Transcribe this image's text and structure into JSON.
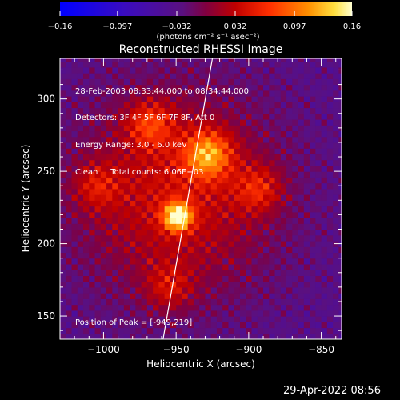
{
  "chart_data": {
    "type": "heatmap",
    "title": "Reconstructed RHESSI Image",
    "xlabel": "Heliocentric X (arcsec)",
    "ylabel": "Heliocentric Y (arcsec)",
    "xlim": [
      -1030,
      -836
    ],
    "ylim": [
      134,
      328
    ],
    "xticks": [
      -1000,
      -950,
      -900,
      -850
    ],
    "xtick_labels": [
      "−1000",
      "−950",
      "−900",
      "−850"
    ],
    "yticks": [
      150,
      200,
      250,
      300
    ],
    "ytick_labels": [
      "150",
      "200",
      "250",
      "300"
    ],
    "colorbar": {
      "min": -0.16,
      "max": 0.16,
      "ticks": [
        -0.16,
        -0.097,
        -0.032,
        0.032,
        0.097,
        0.16
      ],
      "tick_labels": [
        "−0.16",
        "−0.097",
        "−0.032",
        "0.032",
        "0.097",
        "0.16"
      ],
      "units_label": "(photons cm⁻² s⁻¹ asec⁻²)"
    },
    "sources": [
      {
        "x": -949,
        "y": 219,
        "peak": 0.16
      },
      {
        "x": -928,
        "y": 262,
        "peak": 0.11
      },
      {
        "x": -968,
        "y": 283,
        "peak": 0.07
      },
      {
        "x": -1005,
        "y": 240,
        "peak": 0.05
      },
      {
        "x": -893,
        "y": 238,
        "peak": 0.06
      },
      {
        "x": -955,
        "y": 170,
        "peak": 0.05
      }
    ],
    "limb_line": [
      [
        -959,
        134
      ],
      [
        -925,
        328
      ]
    ],
    "annotation_lines": [
      "28-Feb-2003 08:33:44.000 to 08:34:44.000",
      "Detectors: 3F 4F 5F 6F 7F 8F, Att 0",
      "Energy Range: 3.0 - 6.0 keV",
      "Clean     Total counts: 6.06E+03"
    ],
    "peak_text": "Position of Peak = [-949,219]",
    "grid": false
  },
  "timestamp": "29-Apr-2022 08:56"
}
